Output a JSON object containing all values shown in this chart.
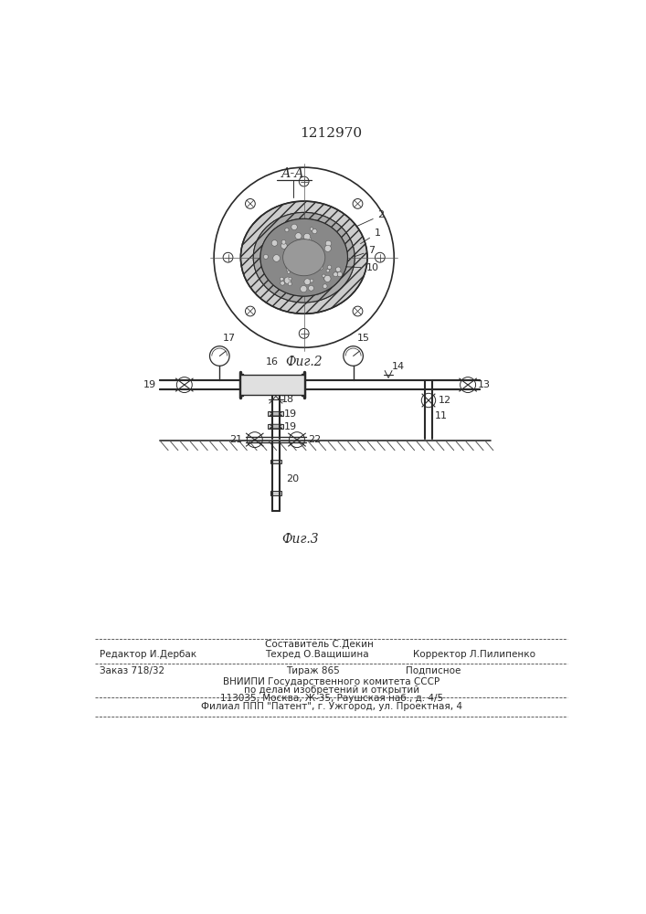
{
  "patent_number": "1212970",
  "fig2_label": "А-А",
  "fig2_caption": "Фиг.2",
  "fig3_caption": "Фиг.3",
  "footer_line1_center1": "Составитель С.Декин",
  "footer_line1_left": "Редактор И.Дербак",
  "footer_line1_center2": "Техред О.Ващишина",
  "footer_line1_right": "Корректор Л.Пилипенко",
  "footer_line2_left": "Заказ 718/32",
  "footer_line2_center": "Тираж 865",
  "footer_line2_right": "Подписное",
  "footer_line3": "ВНИИПИ Государственного комитета СССР",
  "footer_line4": "по делам изобретений и открытий",
  "footer_line5": "113035, Москва, Ж-35, Раушская наб., д. 4/5",
  "footer_line6": "Филиал ППП \"Патент\", г. Ужгород, ул. Проектная, 4",
  "bg_color": "#ffffff",
  "line_color": "#2a2a2a"
}
